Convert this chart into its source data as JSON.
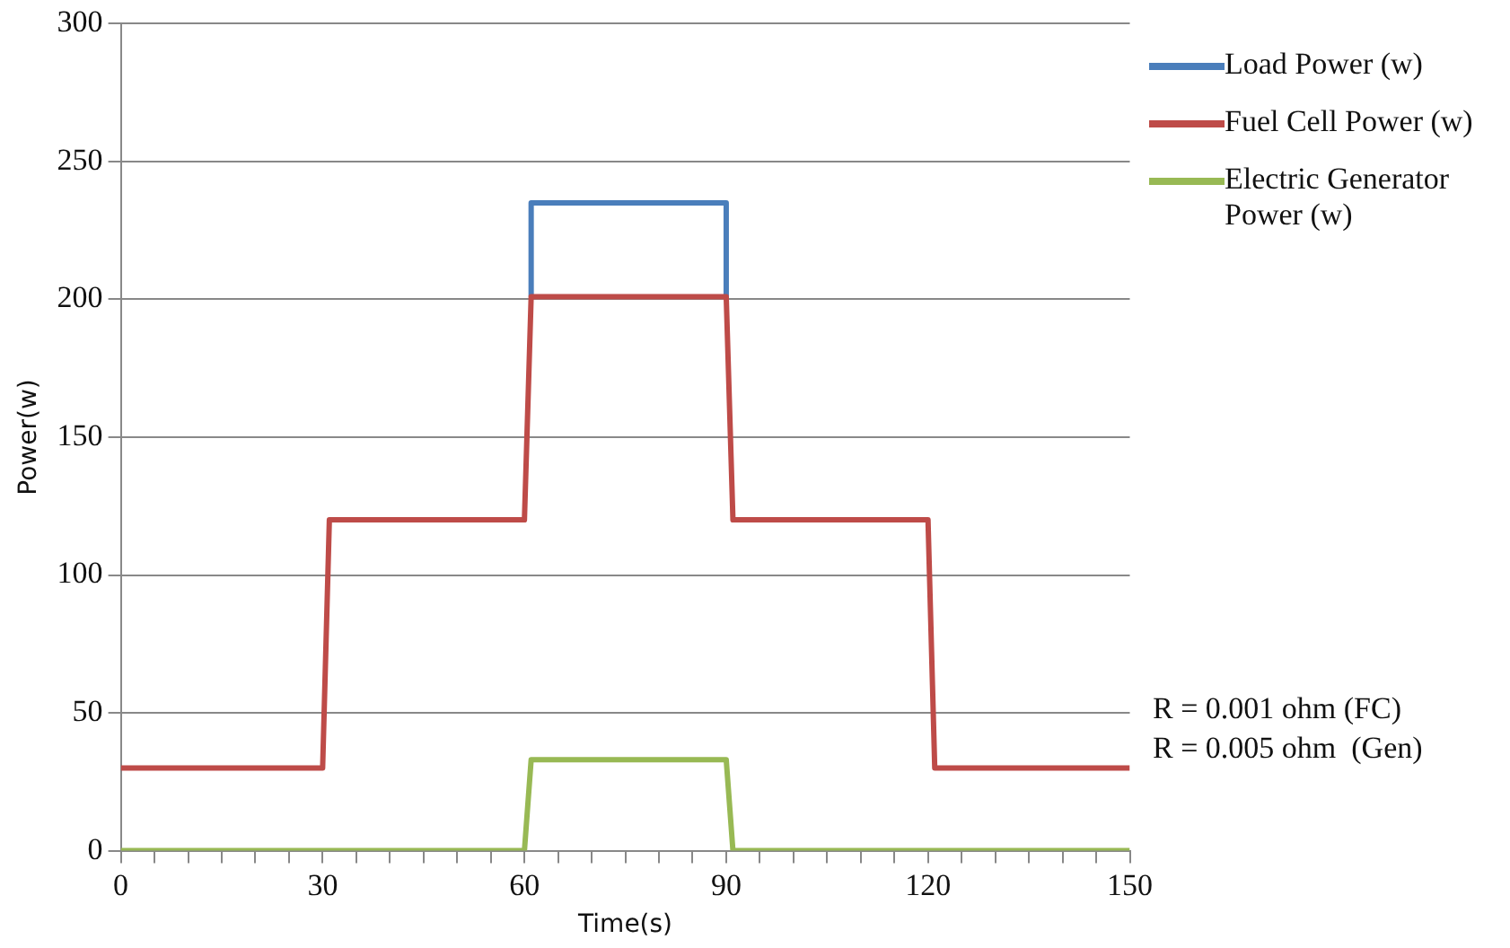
{
  "chart_data": {
    "type": "line",
    "xlabel": "Time(s)",
    "ylabel": "Power(w)",
    "x": [
      0,
      30,
      31,
      60,
      61,
      90,
      91,
      120,
      121,
      150
    ],
    "series": [
      {
        "name": "Load Power (w)",
        "color": "#4a7ebb",
        "x": [
          61,
          61,
          90,
          90
        ],
        "values": [
          201,
          235,
          235,
          201
        ]
      },
      {
        "name": "Fuel Cell Power (w)",
        "color": "#be4b48",
        "values": [
          30,
          30,
          120,
          120,
          201,
          201,
          120,
          120,
          30,
          30
        ]
      },
      {
        "name": "Electric Generator Power (w)",
        "color": "#98b954",
        "x": [
          0,
          60,
          61,
          90,
          91,
          150
        ],
        "values": [
          0,
          0,
          33,
          33,
          0,
          0
        ]
      }
    ],
    "xlim": [
      0,
      150
    ],
    "xticks": [
      0,
      {
        "value": 5,
        "label": null
      },
      {
        "value": 10,
        "label": null
      },
      {
        "value": 15,
        "label": null
      },
      {
        "value": 20,
        "label": null
      },
      {
        "value": 25,
        "label": null
      },
      30,
      {
        "value": 35,
        "label": null
      },
      {
        "value": 40,
        "label": null
      },
      {
        "value": 45,
        "label": null
      },
      {
        "value": 50,
        "label": null
      },
      {
        "value": 55,
        "label": null
      },
      60,
      {
        "value": 65,
        "label": null
      },
      {
        "value": 70,
        "label": null
      },
      {
        "value": 75,
        "label": null
      },
      {
        "value": 80,
        "label": null
      },
      {
        "value": 85,
        "label": null
      },
      90,
      {
        "value": 95,
        "label": null
      },
      {
        "value": 100,
        "label": null
      },
      {
        "value": 105,
        "label": null
      },
      {
        "value": 110,
        "label": null
      },
      {
        "value": 115,
        "label": null
      },
      120,
      {
        "value": 125,
        "label": null
      },
      {
        "value": 130,
        "label": null
      },
      {
        "value": 135,
        "label": null
      },
      {
        "value": 140,
        "label": null
      },
      {
        "value": 145,
        "label": null
      },
      150
    ],
    "ylim": [
      0,
      300
    ],
    "yticks": [
      0,
      50,
      100,
      150,
      200,
      250,
      300
    ],
    "grid": "y",
    "legend": "right",
    "marker": "none",
    "line_style": "solid",
    "annotations": [
      "R = 0.001 ohm (FC)",
      "R = 0.005 ohm  (Gen)"
    ]
  }
}
